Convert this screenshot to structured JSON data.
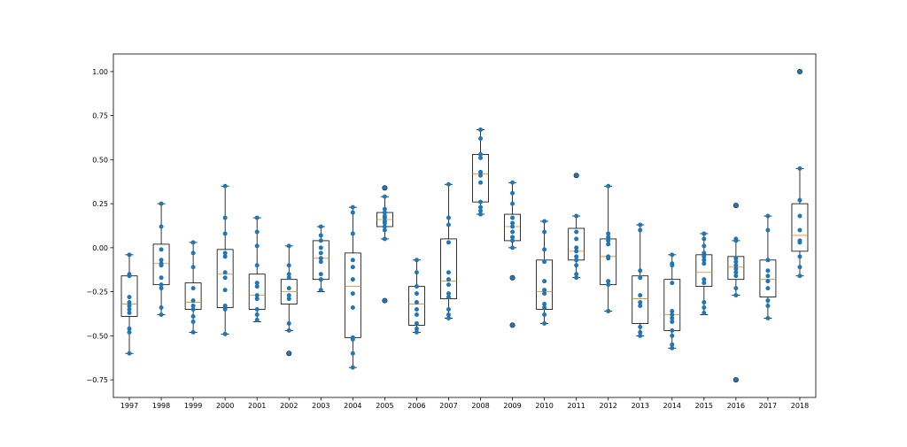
{
  "chart_data": {
    "type": "box",
    "title": "",
    "xlabel": "",
    "ylabel": "",
    "categories": [
      "1997",
      "1998",
      "1999",
      "2000",
      "2001",
      "2002",
      "2003",
      "2004",
      "2005",
      "2006",
      "2007",
      "2008",
      "2009",
      "2010",
      "2011",
      "2012",
      "2013",
      "2014",
      "2015",
      "2016",
      "2017",
      "2018"
    ],
    "ylim": [
      -0.85,
      1.1
    ],
    "yticks": [
      -0.75,
      -0.5,
      -0.25,
      0.0,
      0.25,
      0.5,
      0.75,
      1.0
    ],
    "ytick_labels": [
      "−0.75",
      "−0.50",
      "−0.25",
      "0.00",
      "0.25",
      "0.50",
      "0.75",
      "1.00"
    ],
    "grid": false,
    "colors": {
      "box": "#000000",
      "median": "#ff7f0e",
      "points": "#1f77b4",
      "outlier_edge": "#000000"
    },
    "boxes": [
      {
        "q1": -0.39,
        "median": -0.32,
        "q3": -0.16,
        "whisker_low": -0.6,
        "whisker_high": -0.04,
        "outliers": []
      },
      {
        "q1": -0.21,
        "median": -0.09,
        "q3": 0.02,
        "whisker_low": -0.38,
        "whisker_high": 0.25,
        "outliers": []
      },
      {
        "q1": -0.35,
        "median": -0.31,
        "q3": -0.2,
        "whisker_low": -0.48,
        "whisker_high": 0.03,
        "outliers": []
      },
      {
        "q1": -0.34,
        "median": -0.15,
        "q3": -0.01,
        "whisker_low": -0.49,
        "whisker_high": 0.35,
        "outliers": []
      },
      {
        "q1": -0.35,
        "median": -0.27,
        "q3": -0.15,
        "whisker_low": -0.42,
        "whisker_high": 0.17,
        "outliers": []
      },
      {
        "q1": -0.32,
        "median": -0.25,
        "q3": -0.18,
        "whisker_low": -0.47,
        "whisker_high": 0.01,
        "outliers": [
          -0.6
        ]
      },
      {
        "q1": -0.18,
        "median": -0.06,
        "q3": 0.04,
        "whisker_low": -0.25,
        "whisker_high": 0.12,
        "outliers": []
      },
      {
        "q1": -0.51,
        "median": -0.22,
        "q3": -0.03,
        "whisker_low": -0.68,
        "whisker_high": 0.23,
        "outliers": []
      },
      {
        "q1": 0.12,
        "median": 0.16,
        "q3": 0.2,
        "whisker_low": 0.05,
        "whisker_high": 0.29,
        "outliers": [
          0.34,
          -0.3
        ]
      },
      {
        "q1": -0.44,
        "median": -0.32,
        "q3": -0.22,
        "whisker_low": -0.48,
        "whisker_high": -0.07,
        "outliers": []
      },
      {
        "q1": -0.29,
        "median": -0.19,
        "q3": 0.05,
        "whisker_low": -0.4,
        "whisker_high": 0.36,
        "outliers": []
      },
      {
        "q1": 0.26,
        "median": 0.42,
        "q3": 0.53,
        "whisker_low": 0.19,
        "whisker_high": 0.67,
        "outliers": []
      },
      {
        "q1": 0.04,
        "median": 0.12,
        "q3": 0.19,
        "whisker_low": 0.0,
        "whisker_high": 0.37,
        "outliers": [
          -0.17,
          -0.44
        ]
      },
      {
        "q1": -0.35,
        "median": -0.25,
        "q3": -0.07,
        "whisker_low": -0.43,
        "whisker_high": 0.15,
        "outliers": []
      },
      {
        "q1": -0.07,
        "median": -0.02,
        "q3": 0.11,
        "whisker_low": -0.17,
        "whisker_high": 0.18,
        "outliers": [
          0.41
        ]
      },
      {
        "q1": -0.21,
        "median": -0.05,
        "q3": 0.05,
        "whisker_low": -0.36,
        "whisker_high": 0.35,
        "outliers": []
      },
      {
        "q1": -0.43,
        "median": -0.29,
        "q3": -0.16,
        "whisker_low": -0.5,
        "whisker_high": 0.13,
        "outliers": []
      },
      {
        "q1": -0.47,
        "median": -0.38,
        "q3": -0.18,
        "whisker_low": -0.57,
        "whisker_high": -0.04,
        "outliers": []
      },
      {
        "q1": -0.22,
        "median": -0.14,
        "q3": -0.04,
        "whisker_low": -0.38,
        "whisker_high": 0.08,
        "outliers": []
      },
      {
        "q1": -0.18,
        "median": -0.11,
        "q3": -0.05,
        "whisker_low": -0.27,
        "whisker_high": 0.04,
        "outliers": [
          0.24,
          -0.75
        ]
      },
      {
        "q1": -0.28,
        "median": -0.18,
        "q3": -0.07,
        "whisker_low": -0.4,
        "whisker_high": 0.18,
        "outliers": []
      },
      {
        "q1": -0.02,
        "median": 0.07,
        "q3": 0.25,
        "whisker_low": -0.16,
        "whisker_high": 0.45,
        "outliers": [
          1.0
        ]
      }
    ],
    "points": [
      [
        -0.04,
        -0.15,
        -0.16,
        -0.28,
        -0.31,
        -0.33,
        -0.35,
        -0.37,
        -0.46,
        -0.48,
        -0.6
      ],
      [
        0.25,
        0.12,
        -0.01,
        -0.07,
        -0.09,
        -0.1,
        -0.17,
        -0.21,
        -0.23,
        -0.34,
        -0.38
      ],
      [
        0.03,
        -0.03,
        -0.11,
        -0.23,
        -0.3,
        -0.33,
        -0.35,
        -0.39,
        -0.42,
        -0.48
      ],
      [
        0.35,
        0.17,
        0.08,
        -0.03,
        -0.05,
        -0.14,
        -0.17,
        -0.24,
        -0.33,
        -0.35,
        -0.49
      ],
      [
        0.17,
        0.09,
        0.01,
        -0.1,
        -0.2,
        -0.22,
        -0.27,
        -0.29,
        -0.35,
        -0.38,
        -0.41
      ],
      [
        0.01,
        -0.1,
        -0.15,
        -0.17,
        -0.23,
        -0.27,
        -0.29,
        -0.43,
        -0.47,
        -0.6
      ],
      [
        0.12,
        0.07,
        0.04,
        0.0,
        -0.03,
        -0.06,
        -0.08,
        -0.15,
        -0.18,
        -0.24
      ],
      [
        0.23,
        0.2,
        0.08,
        -0.07,
        -0.11,
        -0.18,
        -0.26,
        -0.34,
        -0.51,
        -0.52,
        -0.6,
        -0.68
      ],
      [
        0.34,
        0.29,
        0.22,
        0.2,
        0.18,
        0.17,
        0.15,
        0.14,
        0.12,
        0.1,
        0.05,
        -0.3
      ],
      [
        -0.07,
        -0.14,
        -0.22,
        -0.26,
        -0.31,
        -0.35,
        -0.38,
        -0.43,
        -0.46,
        -0.48
      ],
      [
        0.36,
        0.17,
        0.13,
        0.03,
        -0.14,
        -0.18,
        -0.21,
        -0.26,
        -0.28,
        -0.35,
        -0.38,
        -0.4
      ],
      [
        0.67,
        0.62,
        0.53,
        0.51,
        0.43,
        0.41,
        0.37,
        0.26,
        0.23,
        0.21,
        0.19
      ],
      [
        0.37,
        0.31,
        0.25,
        0.17,
        0.14,
        0.12,
        0.09,
        0.06,
        0.04,
        0.0,
        -0.17,
        -0.44
      ],
      [
        0.15,
        0.09,
        -0.01,
        -0.08,
        -0.19,
        -0.24,
        -0.26,
        -0.32,
        -0.34,
        -0.38,
        -0.43
      ],
      [
        0.41,
        0.18,
        0.09,
        0.05,
        0.0,
        -0.02,
        -0.05,
        -0.07,
        -0.1,
        -0.15,
        -0.17
      ],
      [
        0.35,
        0.08,
        0.06,
        0.04,
        0.02,
        -0.05,
        -0.06,
        -0.19,
        -0.21,
        -0.36
      ],
      [
        0.13,
        0.1,
        -0.13,
        -0.17,
        -0.27,
        -0.31,
        -0.33,
        -0.45,
        -0.48,
        -0.5
      ],
      [
        -0.04,
        -0.09,
        -0.1,
        -0.2,
        -0.36,
        -0.38,
        -0.4,
        -0.42,
        -0.47,
        -0.5,
        -0.55,
        -0.57
      ],
      [
        0.08,
        0.05,
        0.01,
        -0.03,
        -0.05,
        -0.07,
        -0.09,
        -0.18,
        -0.2,
        -0.31,
        -0.34,
        -0.37
      ],
      [
        0.24,
        0.05,
        0.04,
        -0.06,
        -0.08,
        -0.1,
        -0.12,
        -0.14,
        -0.16,
        -0.23,
        -0.27,
        -0.75
      ],
      [
        0.18,
        0.1,
        -0.07,
        -0.13,
        -0.16,
        -0.19,
        -0.23,
        -0.3,
        -0.33,
        -0.4
      ],
      [
        1.0,
        0.45,
        0.27,
        0.18,
        0.1,
        0.04,
        0.03,
        -0.05,
        -0.11,
        -0.16
      ]
    ]
  }
}
